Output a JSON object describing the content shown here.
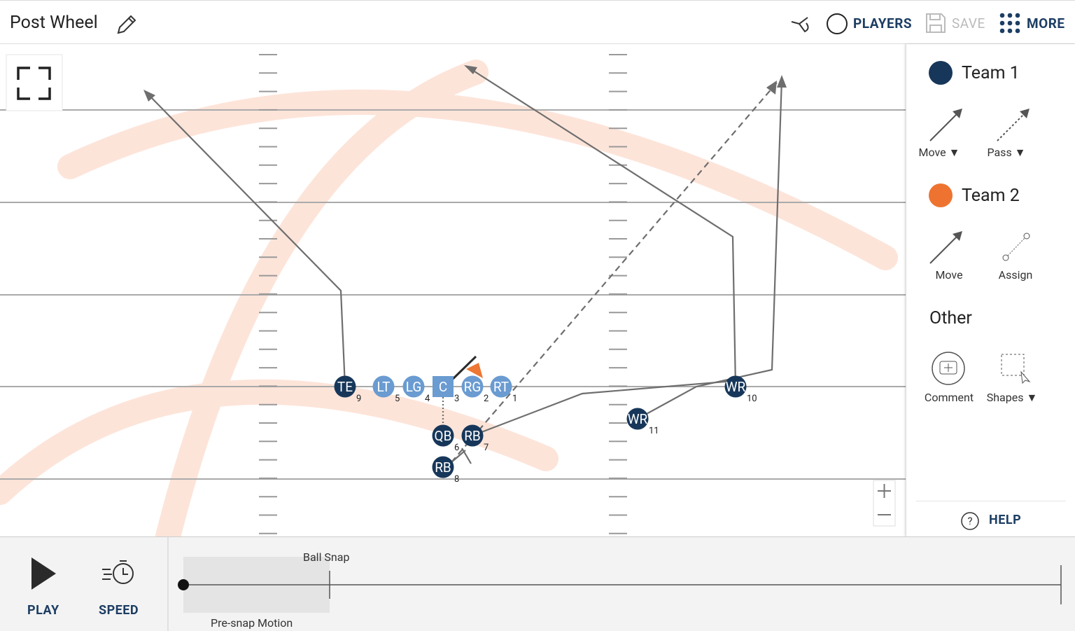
{
  "header": {
    "title": "Post Wheel",
    "players": "PLAYERS",
    "save": "SAVE",
    "more": "MORE"
  },
  "panel": {
    "team1": "Team 1",
    "team1_tools": [
      "Move",
      "Pass"
    ],
    "team2": "Team 2",
    "team2_tools": [
      "Move",
      "Assign"
    ],
    "other": "Other",
    "other_tools": [
      "Comment",
      "Shapes"
    ],
    "help": "HELP"
  },
  "players": [
    {
      "label": "TE",
      "number": 9
    },
    {
      "label": "LT",
      "number": 5
    },
    {
      "label": "LG",
      "number": 4
    },
    {
      "label": "C",
      "number": 3
    },
    {
      "label": "RG",
      "number": 2
    },
    {
      "label": "RT",
      "number": 1
    },
    {
      "label": "QB",
      "number": 6
    },
    {
      "label": "RB",
      "number": 7
    },
    {
      "label": "RB",
      "number": 8
    },
    {
      "label": "WR",
      "number": 10
    },
    {
      "label": "WR",
      "number": 11
    }
  ],
  "timeline": {
    "play": "PLAY",
    "speed": "SPEED",
    "ball_snap": "Ball Snap",
    "pre_snap": "Pre-snap Motion"
  }
}
